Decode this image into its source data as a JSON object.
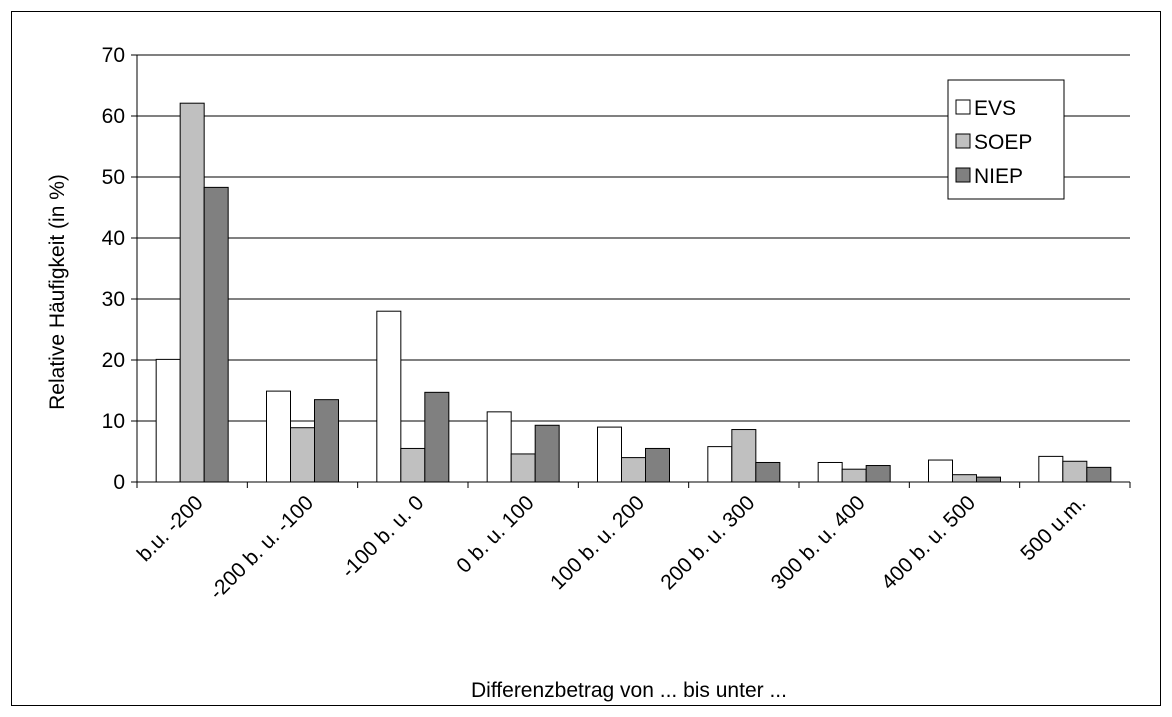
{
  "chart_data": {
    "type": "bar",
    "categories": [
      "b.u. -200",
      "-200 b. u. -100",
      "-100 b. u. 0",
      "0 b. u. 100",
      "100 b. u. 200",
      "200 b. u. 300",
      "300 b. u. 400",
      "400 b. u. 500",
      "500 u.m."
    ],
    "series": [
      {
        "name": "EVS",
        "color": "#ffffff",
        "values": [
          20.1,
          14.9,
          28.0,
          11.5,
          9.0,
          5.8,
          3.2,
          3.6,
          4.2
        ]
      },
      {
        "name": "SOEP",
        "color": "#c0c0c0",
        "values": [
          62.1,
          8.9,
          5.5,
          4.6,
          4.0,
          8.6,
          2.1,
          1.2,
          3.4
        ]
      },
      {
        "name": "NIEP",
        "color": "#808080",
        "values": [
          48.3,
          13.5,
          14.7,
          9.3,
          5.5,
          3.2,
          2.7,
          0.8,
          2.4
        ]
      }
    ],
    "xlabel": "Differenzbetrag von ... bis unter ...",
    "ylabel": "Relative Häufigkeit (in %)",
    "ylim": [
      0,
      70
    ],
    "yticks": [
      "0",
      "10",
      "20",
      "30",
      "40",
      "50",
      "60",
      "70"
    ],
    "grid": true,
    "legend_position": "top-right"
  }
}
